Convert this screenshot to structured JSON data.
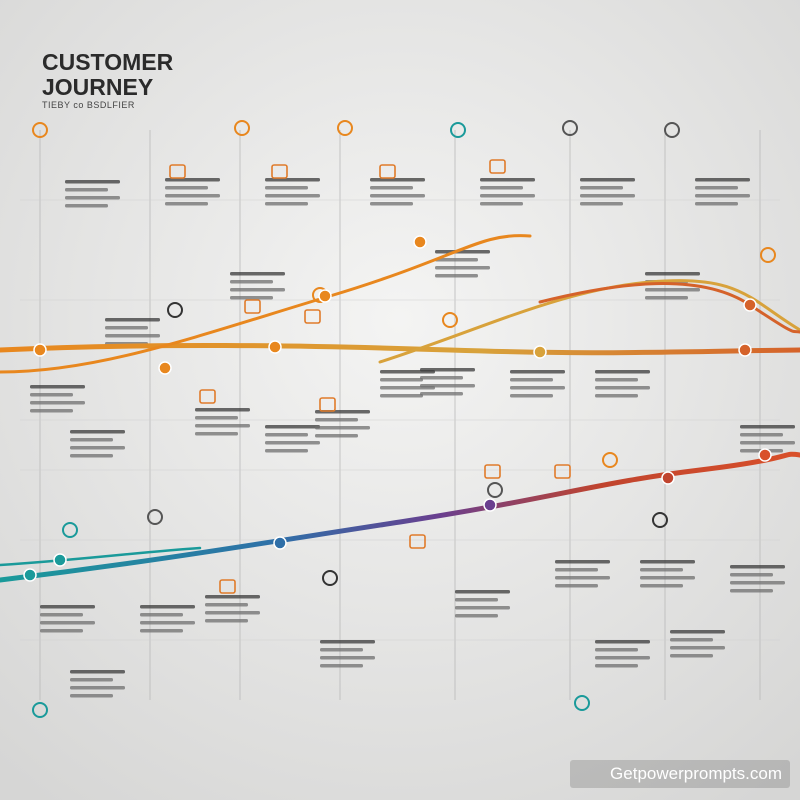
{
  "header": {
    "title_line1": "CUSTOMER",
    "title_line2": "JOURNEY",
    "subtitle": "TIEBY co BSDLFIER"
  },
  "watermark": "Getpowerprompts.com"
}
